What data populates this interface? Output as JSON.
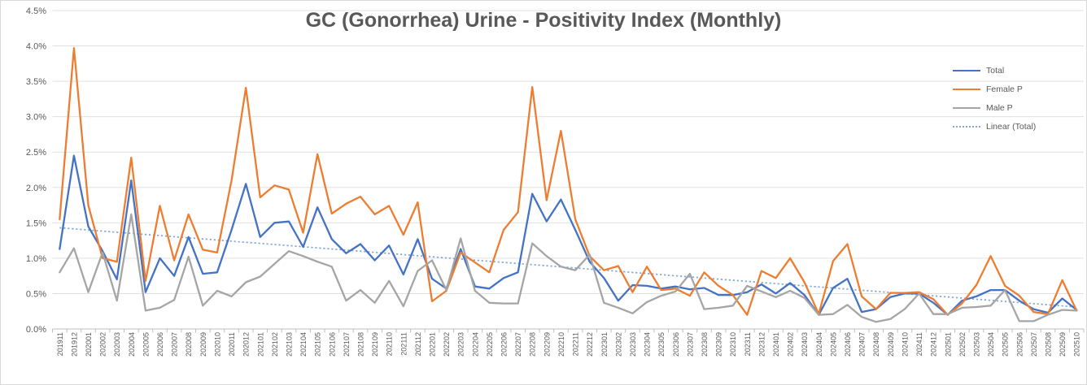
{
  "title": "GC (Gonorrhea) Urine - Positivity Index (Monthly)",
  "chart_data": {
    "type": "line",
    "title": "GC (Gonorrhea) Urine - Positivity Index (Monthly)",
    "xlabel": "",
    "ylabel": "",
    "grid": true,
    "legend_position": "right-inside",
    "y_axis": {
      "min": 0,
      "max": 4.5,
      "step": 0.5,
      "format": "percent",
      "labels": [
        "0.0%",
        "0.5%",
        "1.0%",
        "1.5%",
        "2.0%",
        "2.5%",
        "3.0%",
        "3.5%",
        "4.0%",
        "4.5%"
      ]
    },
    "categories": [
      "201911",
      "201912",
      "202001",
      "202002",
      "202003",
      "202004",
      "202005",
      "202006",
      "202007",
      "202008",
      "202009",
      "202010",
      "202011",
      "202012",
      "202101",
      "202102",
      "202103",
      "202104",
      "202105",
      "202106",
      "202107",
      "202108",
      "202109",
      "202110",
      "202111",
      "202112",
      "202201",
      "202202",
      "202203",
      "202204",
      "202205",
      "202206",
      "202207",
      "202208",
      "202209",
      "202210",
      "202211",
      "202212",
      "202301",
      "202302",
      "202303",
      "202304",
      "202305",
      "202306",
      "202307",
      "202308",
      "202309",
      "202310",
      "202311",
      "202312",
      "202401",
      "202402",
      "202403",
      "202404",
      "202405",
      "202406",
      "202407",
      "202408",
      "202409",
      "202410",
      "202411",
      "202412",
      "202501",
      "202502",
      "202503",
      "202504",
      "202505",
      "202506",
      "202507",
      "202508",
      "202509",
      "202510"
    ],
    "series": [
      {
        "name": "Total",
        "color": "#4472C4",
        "values": [
          1.13,
          2.45,
          1.45,
          1.1,
          0.7,
          2.1,
          0.52,
          1.0,
          0.75,
          1.3,
          0.78,
          0.8,
          1.4,
          2.05,
          1.3,
          1.5,
          1.52,
          1.16,
          1.72,
          1.27,
          1.07,
          1.2,
          0.97,
          1.18,
          0.77,
          1.27,
          0.71,
          0.57,
          1.13,
          0.6,
          0.57,
          0.72,
          0.8,
          1.91,
          1.52,
          1.83,
          1.4,
          0.95,
          0.72,
          0.4,
          0.62,
          0.61,
          0.57,
          0.6,
          0.56,
          0.58,
          0.48,
          0.48,
          0.52,
          0.63,
          0.5,
          0.65,
          0.48,
          0.2,
          0.58,
          0.71,
          0.24,
          0.28,
          0.45,
          0.5,
          0.5,
          0.37,
          0.2,
          0.4,
          0.46,
          0.55,
          0.55,
          0.4,
          0.28,
          0.23,
          0.43,
          0.27
        ]
      },
      {
        "name": "Female P",
        "color": "#ED7D31",
        "values": [
          1.55,
          3.97,
          1.75,
          1.0,
          0.95,
          2.42,
          0.68,
          1.74,
          0.97,
          1.62,
          1.12,
          1.08,
          2.1,
          3.41,
          1.86,
          2.03,
          1.97,
          1.36,
          2.47,
          1.63,
          1.77,
          1.87,
          1.62,
          1.74,
          1.33,
          1.79,
          0.39,
          0.54,
          1.08,
          0.94,
          0.8,
          1.4,
          1.65,
          3.42,
          1.82,
          2.8,
          1.55,
          1.03,
          0.83,
          0.89,
          0.52,
          0.88,
          0.55,
          0.57,
          0.47,
          0.8,
          0.61,
          0.48,
          0.2,
          0.82,
          0.72,
          1.0,
          0.66,
          0.21,
          0.96,
          1.2,
          0.46,
          0.28,
          0.51,
          0.51,
          0.52,
          0.42,
          0.2,
          0.36,
          0.62,
          1.03,
          0.61,
          0.47,
          0.24,
          0.21,
          0.69,
          0.26
        ]
      },
      {
        "name": "Male P",
        "color": "#A5A5A5",
        "values": [
          0.8,
          1.14,
          0.52,
          1.08,
          0.4,
          1.62,
          0.26,
          0.3,
          0.41,
          1.02,
          0.33,
          0.54,
          0.46,
          0.66,
          0.74,
          0.92,
          1.1,
          1.03,
          0.95,
          0.88,
          0.4,
          0.55,
          0.37,
          0.68,
          0.32,
          0.82,
          0.97,
          0.55,
          1.28,
          0.54,
          0.37,
          0.36,
          0.36,
          1.21,
          1.03,
          0.88,
          0.83,
          1.05,
          0.37,
          0.3,
          0.22,
          0.38,
          0.47,
          0.53,
          0.78,
          0.28,
          0.3,
          0.33,
          0.61,
          0.53,
          0.45,
          0.54,
          0.44,
          0.2,
          0.21,
          0.34,
          0.17,
          0.1,
          0.14,
          0.28,
          0.5,
          0.21,
          0.21,
          0.3,
          0.31,
          0.33,
          0.55,
          0.11,
          0.11,
          0.2,
          0.27,
          0.26
        ]
      }
    ],
    "trendline": {
      "name": "Linear (Total)",
      "color": "#7FA5D9",
      "style": "dotted",
      "start_value": 1.43,
      "end_value": 0.31
    },
    "legend_items": [
      {
        "label": "Total"
      },
      {
        "label": "Female P"
      },
      {
        "label": "Male P"
      },
      {
        "label": "Linear (Total)"
      }
    ]
  }
}
